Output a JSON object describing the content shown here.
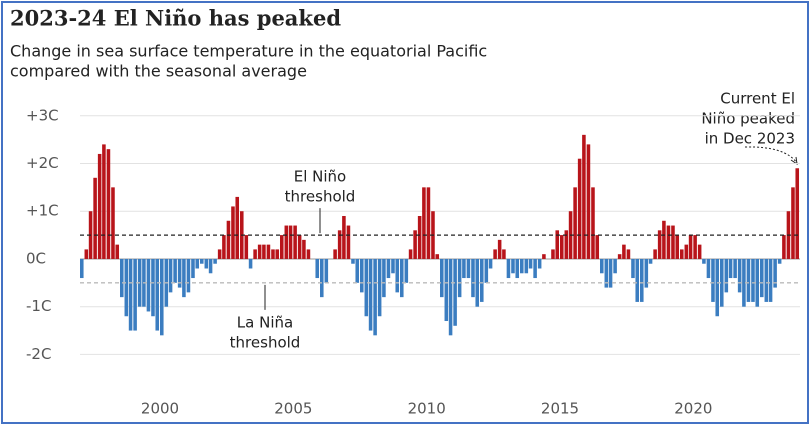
{
  "chart_data": {
    "type": "bar",
    "title": "2023-24 El Niño has peaked",
    "subtitle": [
      "Change in sea surface temperature in the equatorial Pacific",
      "compared with the seasonal average"
    ],
    "positive_color": "#b8141a",
    "negative_color": "#3b7dc0",
    "grid": true,
    "xlim": [
      1997,
      2024
    ],
    "xticks": [
      2000,
      2005,
      2010,
      2015,
      2020
    ],
    "ylim": [
      -2.85,
      3.33
    ],
    "yticks": [
      {
        "value": 3,
        "label": "+3C"
      },
      {
        "value": 2,
        "label": "+2C"
      },
      {
        "value": 1,
        "label": "+1C"
      },
      {
        "value": 0,
        "label": "0C"
      },
      {
        "value": -1,
        "label": "-1C"
      },
      {
        "value": -2,
        "label": "-2C"
      }
    ],
    "thresholds": [
      {
        "value": 0.5,
        "text": [
          "El Niño",
          "threshold"
        ],
        "color": "#222"
      },
      {
        "value": -0.5,
        "text": [
          "La Niña",
          "threshold"
        ],
        "color": "#bbb"
      }
    ],
    "annotation": [
      "Current El",
      "Niño peaked",
      "in Dec 2023"
    ],
    "x": [
      1997,
      1997.17,
      1997.33,
      1997.5,
      1997.67,
      1997.83,
      1998,
      1998.17,
      1998.33,
      1998.5,
      1998.67,
      1998.83,
      1999,
      1999.17,
      1999.33,
      1999.5,
      1999.67,
      1999.83,
      2000,
      2000.17,
      2000.33,
      2000.5,
      2000.67,
      2000.83,
      2001,
      2001.17,
      2001.33,
      2001.5,
      2001.67,
      2001.83,
      2002,
      2002.17,
      2002.33,
      2002.5,
      2002.67,
      2002.83,
      2003,
      2003.17,
      2003.33,
      2003.5,
      2003.67,
      2003.83,
      2004,
      2004.17,
      2004.33,
      2004.5,
      2004.67,
      2004.83,
      2005,
      2005.17,
      2005.33,
      2005.5,
      2005.67,
      2005.83,
      2006,
      2006.17,
      2006.33,
      2006.5,
      2006.67,
      2006.83,
      2007,
      2007.17,
      2007.33,
      2007.5,
      2007.67,
      2007.83,
      2008,
      2008.17,
      2008.33,
      2008.5,
      2008.67,
      2008.83,
      2009,
      2009.17,
      2009.33,
      2009.5,
      2009.67,
      2009.83,
      2010,
      2010.17,
      2010.33,
      2010.5,
      2010.67,
      2010.83,
      2011,
      2011.17,
      2011.33,
      2011.5,
      2011.67,
      2011.83,
      2012,
      2012.17,
      2012.33,
      2012.5,
      2012.67,
      2012.83,
      2013,
      2013.17,
      2013.33,
      2013.5,
      2013.67,
      2013.83,
      2014,
      2014.17,
      2014.33,
      2014.5,
      2014.67,
      2014.83,
      2015,
      2015.17,
      2015.33,
      2015.5,
      2015.67,
      2015.83,
      2016,
      2016.17,
      2016.33,
      2016.5,
      2016.67,
      2016.83,
      2017,
      2017.17,
      2017.33,
      2017.5,
      2017.67,
      2017.83,
      2018,
      2018.17,
      2018.33,
      2018.5,
      2018.67,
      2018.83,
      2019,
      2019.17,
      2019.33,
      2019.5,
      2019.67,
      2019.83,
      2020,
      2020.17,
      2020.33,
      2020.5,
      2020.67,
      2020.83,
      2021,
      2021.17,
      2021.33,
      2021.5,
      2021.67,
      2021.83,
      2022,
      2022.17,
      2022.33,
      2022.5,
      2022.67,
      2022.83,
      2023,
      2023.17,
      2023.33,
      2023.5,
      2023.67,
      2023.83
    ],
    "values": [
      -0.4,
      0.2,
      1.0,
      1.7,
      2.2,
      2.4,
      2.3,
      1.5,
      0.3,
      -0.8,
      -1.2,
      -1.5,
      -1.5,
      -1.0,
      -1.0,
      -1.1,
      -1.2,
      -1.5,
      -1.6,
      -1.0,
      -0.7,
      -0.5,
      -0.6,
      -0.8,
      -0.7,
      -0.4,
      -0.2,
      -0.1,
      -0.2,
      -0.3,
      -0.1,
      0.2,
      0.5,
      0.8,
      1.1,
      1.3,
      1.0,
      0.5,
      -0.2,
      0.2,
      0.3,
      0.3,
      0.3,
      0.2,
      0.2,
      0.5,
      0.7,
      0.7,
      0.7,
      0.5,
      0.4,
      0.2,
      0.0,
      -0.4,
      -0.8,
      -0.5,
      0.0,
      0.2,
      0.6,
      0.9,
      0.7,
      -0.1,
      -0.5,
      -0.7,
      -1.2,
      -1.5,
      -1.6,
      -1.2,
      -0.8,
      -0.4,
      -0.3,
      -0.7,
      -0.8,
      -0.5,
      0.2,
      0.6,
      0.9,
      1.5,
      1.5,
      1.0,
      0.1,
      -0.8,
      -1.3,
      -1.6,
      -1.4,
      -0.8,
      -0.4,
      -0.4,
      -0.8,
      -1.0,
      -0.9,
      -0.5,
      -0.2,
      0.2,
      0.4,
      0.2,
      -0.4,
      -0.3,
      -0.4,
      -0.3,
      -0.3,
      -0.2,
      -0.4,
      -0.2,
      0.1,
      0.0,
      0.2,
      0.6,
      0.5,
      0.6,
      1.0,
      1.5,
      2.1,
      2.6,
      2.4,
      1.5,
      0.5,
      -0.3,
      -0.6,
      -0.6,
      -0.3,
      0.1,
      0.3,
      0.2,
      -0.4,
      -0.9,
      -0.9,
      -0.6,
      -0.1,
      0.2,
      0.6,
      0.8,
      0.7,
      0.7,
      0.5,
      0.2,
      0.3,
      0.5,
      0.5,
      0.3,
      -0.1,
      -0.4,
      -0.9,
      -1.2,
      -1.0,
      -0.7,
      -0.4,
      -0.4,
      -0.7,
      -1.0,
      -0.9,
      -0.9,
      -1.0,
      -0.8,
      -0.9,
      -0.9,
      -0.6,
      -0.1,
      0.5,
      1.0,
      1.5,
      1.9
    ]
  }
}
